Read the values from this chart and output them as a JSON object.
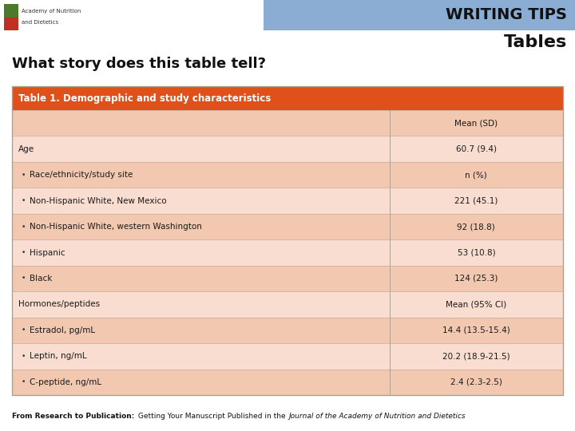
{
  "title_writing_tips": "WRITING TIPS",
  "title_tables": "Tables",
  "subtitle": "What story does this table tell?",
  "table_header": "Table 1. Demographic and study characteristics",
  "header_bg": "#E0501A",
  "header_text_color": "#FFFFFF",
  "row_bg_odd": "#F2C9B0",
  "row_bg_even": "#F8DDD0",
  "writing_tips_bg": "#8BADD4",
  "page_bg": "#FFFFFF",
  "rows": [
    {
      "label": "",
      "value": "Mean (SD)",
      "indent": false
    },
    {
      "label": "Age",
      "value": "60.7 (9.4)",
      "indent": false
    },
    {
      "label": "Race/ethnicity/study site",
      "value": "n (%)",
      "indent": true
    },
    {
      "label": "Non-Hispanic White, New Mexico",
      "value": "221 (45.1)",
      "indent": true
    },
    {
      "label": "Non-Hispanic White, western Washington",
      "value": "92 (18.8)",
      "indent": true
    },
    {
      "label": "Hispanic",
      "value": "53 (10.8)",
      "indent": true
    },
    {
      "label": "Black",
      "value": "124 (25.3)",
      "indent": true
    },
    {
      "label": "Hormones/peptides",
      "value": "Mean (95% CI)",
      "indent": false
    },
    {
      "label": "Estradol, pg/mL",
      "value": "14.4 (13.5-15.4)",
      "indent": true
    },
    {
      "label": "Leptin, ng/mL",
      "value": "20.2 (18.9-21.5)",
      "indent": true
    },
    {
      "label": "C-peptide, ng/mL",
      "value": "2.4 (2.3-2.5)",
      "indent": true
    }
  ],
  "footer_bold": "From Research to Publication:",
  "footer_normal": " Getting Your Manuscript Published in the ",
  "footer_italic": "Journal of the Academy of Nutrition and Dietetics",
  "logo_text_line1": "Academy of Nutrition",
  "logo_text_line2": "and Dietetics"
}
